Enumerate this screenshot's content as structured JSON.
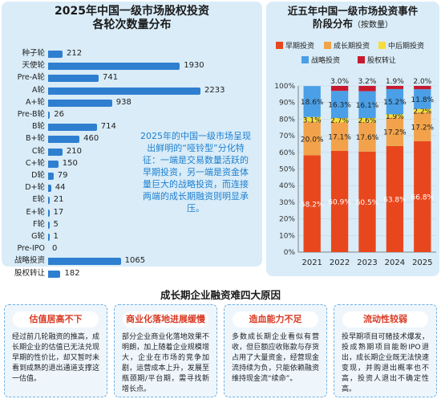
{
  "left": {
    "title_line1": "2025年中国一级市场股权投资",
    "title_line2": "各轮次数量分布",
    "callout": "2025年的中国一级市场呈现出鲜明的“哑铃型”分化特征：一端是交易数量活跃的早期投资，另一端是资金体量巨大的战略投资，而连接两端的成长期融资则明显承压。"
  },
  "right": {
    "title_line1": "近五年中国一级市场投资事件",
    "title_line2": "阶段分布",
    "title_note": "（按数量）"
  },
  "bottom": {
    "title": "成长期企业融资难四大原因",
    "cards": [
      {
        "heading": "估值居高不下",
        "body": "经过前几轮融资的推高，成长期企业的估值已无法兑现早期的性价比，却又暂时未看到成熟的退出通道支撑这一估值。"
      },
      {
        "heading": "商业化落地进展缓慢",
        "body": "部分企业商业化落地效果不明朗，加上随着企业规模增大，企业在市场的竞争加剧，运营成本上升，发展至瓶颈期/平台期，需寻找新增长点。"
      },
      {
        "heading": "造血能力不足",
        "body": "多数成长期企业看似有营收，但巨额应收账款与存货占用了大量资金，经营现金流持续为负，只能依赖融资维持现金流“续命”。"
      },
      {
        "heading": "流动性较弱",
        "body": "投早期项目可赌技术爆发，投成熟期项目能盼IPO退出，成长期企业既无法快速变现，并购退出概率也不高，投资人退出不确定性高。"
      }
    ]
  },
  "chart_data": [
    {
      "type": "bar",
      "orientation": "horizontal",
      "title": "2025年中国一级市场股权投资各轮次数量分布",
      "categories": [
        "种子轮",
        "天使轮",
        "Pre-A轮",
        "A轮",
        "A+轮",
        "Pre-B轮",
        "B轮",
        "B+轮",
        "C轮",
        "C+轮",
        "D轮",
        "D+轮",
        "E轮",
        "E+轮",
        "F轮",
        "G轮",
        "Pre-IPO",
        "战略投资",
        "股权转让"
      ],
      "values": [
        212,
        1930,
        741,
        2233,
        938,
        26,
        714,
        460,
        210,
        150,
        79,
        44,
        21,
        17,
        5,
        1,
        0,
        1065,
        182
      ],
      "color": "#2e7fd0"
    },
    {
      "type": "bar",
      "stacked": true,
      "percent": true,
      "title": "近五年中国一级市场投资事件阶段分布",
      "categories": [
        "2021",
        "2022",
        "2023",
        "2024",
        "2025"
      ],
      "series": [
        {
          "name": "早期投资",
          "color": "#e8471e",
          "values": [
            58.2,
            60.9,
            60.5,
            63.8,
            66.8
          ]
        },
        {
          "name": "成长期投资",
          "color": "#f2a24a",
          "values": [
            20.0,
            17.1,
            17.6,
            17.2,
            17.2
          ]
        },
        {
          "name": "中后期投资",
          "color": "#f6dd3e",
          "values": [
            3.1,
            2.7,
            2.6,
            1.9,
            2.2
          ]
        },
        {
          "name": "战略投资",
          "color": "#4a9fe6",
          "values": [
            18.6,
            16.3,
            16.1,
            15.2,
            11.8
          ]
        },
        {
          "name": "股权转让",
          "color": "#c81a2f",
          "values": [
            0.0,
            3.0,
            3.2,
            1.9,
            2.0
          ]
        }
      ],
      "labels": [
        [
          "58.2%",
          "20.0%",
          "3.1%",
          "18.6%",
          ""
        ],
        [
          "60.9%",
          "17.1%",
          "2.7%",
          "16.3%",
          "3.0%"
        ],
        [
          "60.5%",
          "17.6%",
          "2.6%",
          "16.1%",
          "3.2%"
        ],
        [
          "63.8%",
          "17.2%",
          "1.9%",
          "15.2%",
          "1.9%"
        ],
        [
          "66.8%",
          "17.2%",
          "2.2%",
          "11.8%",
          "2.0%"
        ]
      ],
      "y_ticks": [
        "0%",
        "10%",
        "20%",
        "30%",
        "40%",
        "50%",
        "60%",
        "70%",
        "80%",
        "90%",
        "100%"
      ],
      "ylim": [
        0,
        100
      ],
      "legend_position": "top"
    }
  ]
}
